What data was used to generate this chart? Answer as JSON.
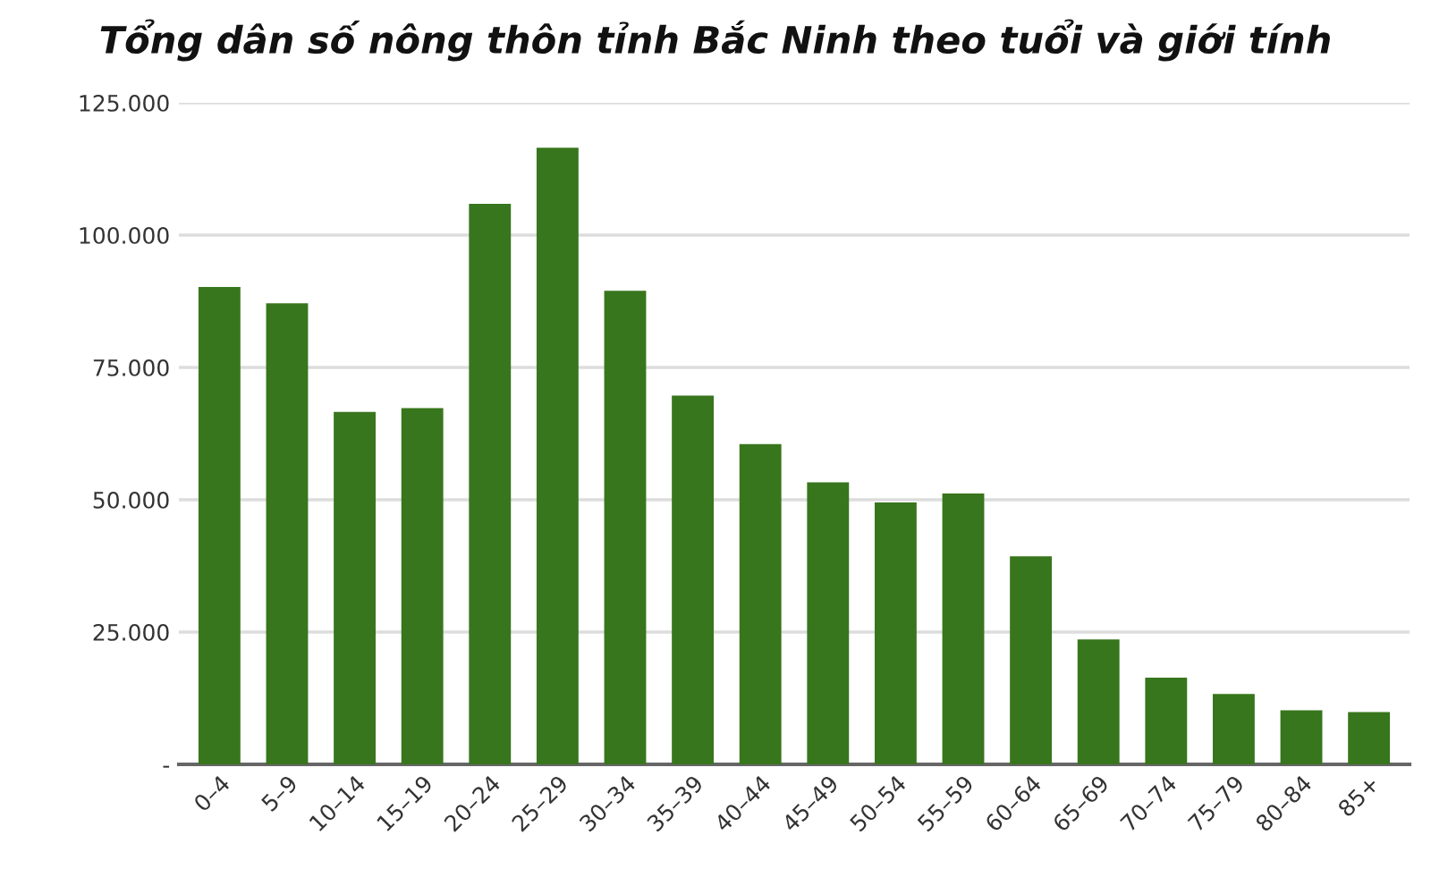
{
  "chart_data": {
    "type": "bar",
    "title": "Tổng dân số nông thôn tỉnh Bắc Ninh theo tuổi và giới tính",
    "categories": [
      "0–4",
      "5–9",
      "10–14",
      "15–19",
      "20–24",
      "25–29",
      "30–34",
      "35–39",
      "40–44",
      "45–49",
      "50–54",
      "55–59",
      "60–64",
      "65–69",
      "70–74",
      "75–79",
      "80–84",
      "85+"
    ],
    "values": [
      90200,
      87100,
      66600,
      67300,
      105900,
      116500,
      89500,
      69700,
      60500,
      53300,
      49500,
      51200,
      39300,
      23600,
      16400,
      13300,
      10200,
      9900
    ],
    "color": "#38761d",
    "ylim": [
      0,
      125000
    ],
    "yticks": [
      {
        "value": 0,
        "label": "-"
      },
      {
        "value": 25000,
        "label": "25.000"
      },
      {
        "value": 50000,
        "label": "50.000"
      },
      {
        "value": 75000,
        "label": "75.000"
      },
      {
        "value": 100000,
        "label": "100.000"
      },
      {
        "value": 125000,
        "label": "125.000"
      }
    ],
    "grid": "y",
    "legend": false
  }
}
